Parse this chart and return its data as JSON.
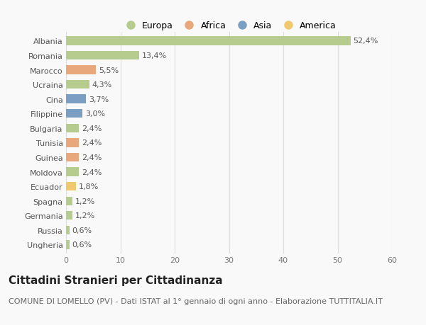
{
  "countries": [
    "Albania",
    "Romania",
    "Marocco",
    "Ucraina",
    "Cina",
    "Filippine",
    "Bulgaria",
    "Tunisia",
    "Guinea",
    "Moldova",
    "Ecuador",
    "Spagna",
    "Germania",
    "Russia",
    "Ungheria"
  ],
  "values": [
    52.4,
    13.4,
    5.5,
    4.3,
    3.7,
    3.0,
    2.4,
    2.4,
    2.4,
    2.4,
    1.8,
    1.2,
    1.2,
    0.6,
    0.6
  ],
  "labels": [
    "52,4%",
    "13,4%",
    "5,5%",
    "4,3%",
    "3,7%",
    "3,0%",
    "2,4%",
    "2,4%",
    "2,4%",
    "2,4%",
    "1,8%",
    "1,2%",
    "1,2%",
    "0,6%",
    "0,6%"
  ],
  "colors": [
    "#b5cc8e",
    "#b5cc8e",
    "#e8a87c",
    "#b5cc8e",
    "#7a9fc2",
    "#7a9fc2",
    "#b5cc8e",
    "#e8a87c",
    "#e8a87c",
    "#b5cc8e",
    "#f0c96e",
    "#b5cc8e",
    "#b5cc8e",
    "#b5cc8e",
    "#b5cc8e"
  ],
  "legend_labels": [
    "Europa",
    "Africa",
    "Asia",
    "America"
  ],
  "legend_colors": [
    "#b5cc8e",
    "#e8a87c",
    "#7a9fc2",
    "#f0c96e"
  ],
  "xlim": [
    0,
    60
  ],
  "xticks": [
    0,
    10,
    20,
    30,
    40,
    50,
    60
  ],
  "title": "Cittadini Stranieri per Cittadinanza",
  "subtitle": "COMUNE DI LOMELLO (PV) - Dati ISTAT al 1° gennaio di ogni anno - Elaborazione TUTTITALIA.IT",
  "background_color": "#f9f9f9",
  "bar_height": 0.6,
  "grid_color": "#dddddd",
  "title_fontsize": 11,
  "subtitle_fontsize": 8,
  "label_fontsize": 8,
  "tick_fontsize": 8,
  "legend_fontsize": 9
}
